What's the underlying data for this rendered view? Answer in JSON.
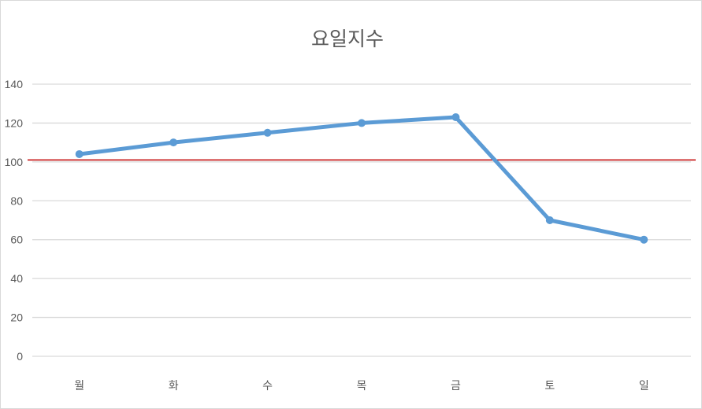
{
  "chart_data": {
    "type": "line",
    "title": "요일지수",
    "categories": [
      "월",
      "화",
      "수",
      "목",
      "금",
      "토",
      "일"
    ],
    "series": [
      {
        "values": [
          104,
          110,
          115,
          120,
          123,
          70,
          60
        ],
        "color": "#5b9bd5"
      }
    ],
    "ylim": [
      0,
      140
    ],
    "yticks": [
      0,
      20,
      40,
      60,
      80,
      100,
      120,
      140
    ],
    "grid": true,
    "reference_line": {
      "value": 101,
      "color": "#c00000"
    }
  }
}
